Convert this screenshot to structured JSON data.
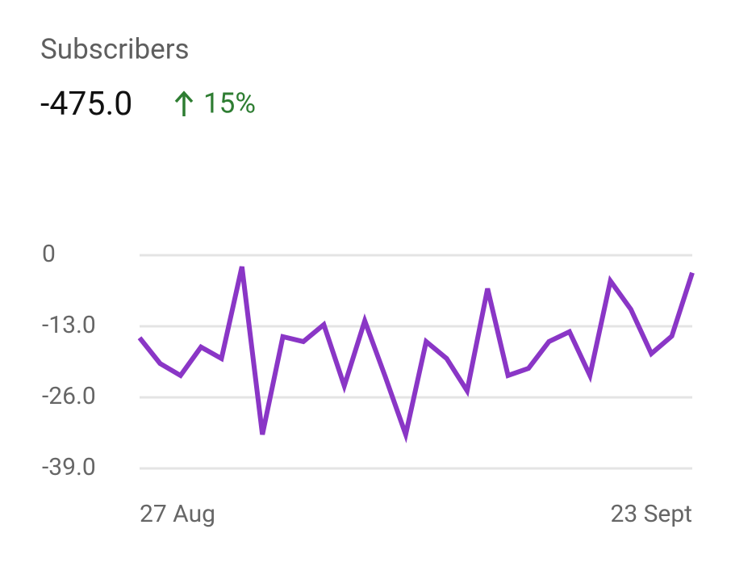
{
  "header": {
    "title": "Subscribers",
    "value": "-475.0",
    "change": "15%"
  },
  "chart_data": {
    "type": "line",
    "categories": [
      "27 Aug",
      null,
      null,
      null,
      null,
      null,
      null,
      null,
      null,
      null,
      null,
      null,
      null,
      null,
      null,
      null,
      null,
      null,
      null,
      null,
      null,
      null,
      null,
      null,
      null,
      null,
      null,
      "23 Sept"
    ],
    "series": [
      {
        "color": "#8a36c6",
        "values": [
          -15.1,
          -19.8,
          -22.0,
          -16.8,
          -18.9,
          -2.1,
          -32.8,
          -14.9,
          -15.8,
          -12.7,
          -23.9,
          -12.0,
          -22.2,
          -32.8,
          -15.8,
          -18.9,
          -24.8,
          -6.1,
          -22.0,
          -20.7,
          -15.8,
          -14.0,
          -22.0,
          -4.7,
          -9.9,
          -18.0,
          -14.8,
          -3.2
        ]
      }
    ],
    "ylim": [
      -39,
      0
    ],
    "yticks": [
      0,
      {
        "value": -13,
        "label": "-13.0"
      },
      {
        "value": -26,
        "label": "-26.0"
      },
      {
        "value": -39,
        "label": "-39.0"
      }
    ],
    "grid": true
  }
}
